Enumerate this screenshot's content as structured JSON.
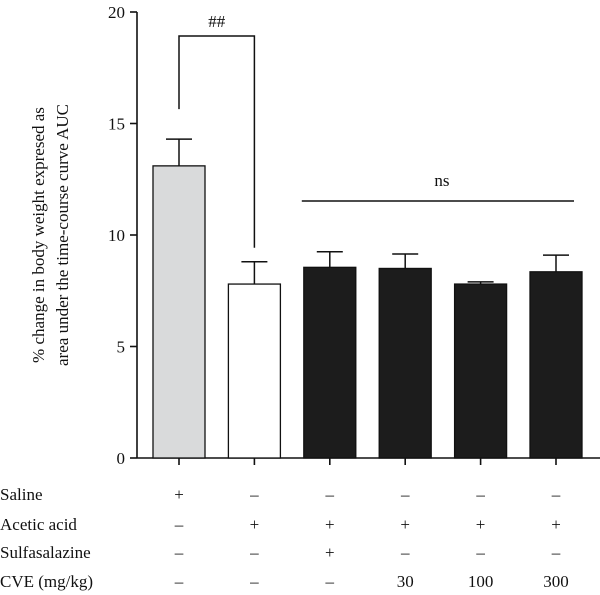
{
  "chart_data": {
    "type": "bar",
    "ylabel_lines": [
      "% change in body weight expresed as",
      "area under the time-course curve AUC"
    ],
    "ylim": [
      0,
      20
    ],
    "yticks": [
      0,
      5,
      10,
      15,
      20
    ],
    "values": [
      13.1,
      7.8,
      8.55,
      8.5,
      7.8,
      8.35
    ],
    "errors": [
      1.2,
      1.0,
      0.7,
      0.65,
      0.1,
      0.75
    ],
    "bar_colors": [
      "#d9dadb",
      "#ffffff",
      "#1c1c1c",
      "#1c1c1c",
      "#1c1c1c",
      "#1c1c1c"
    ],
    "annotations": [
      {
        "text": "##",
        "from_bar": 0,
        "to_bar": 1
      },
      {
        "text": "ns",
        "from_bar": 2,
        "to_bar": 5
      }
    ],
    "conditions": [
      {
        "label": "Saline",
        "values": [
          "+",
          "–",
          "–",
          "–",
          "–",
          "–"
        ]
      },
      {
        "label": "Acetic acid",
        "values": [
          "–",
          "+",
          "+",
          "+",
          "+",
          "+"
        ]
      },
      {
        "label": "Sulfasalazine",
        "values": [
          "–",
          "–",
          "+",
          "–",
          "–",
          "–"
        ]
      },
      {
        "label": "CVE (mg/kg)",
        "values": [
          "–",
          "–",
          "–",
          "30",
          "100",
          "300"
        ]
      }
    ],
    "grid": false
  }
}
